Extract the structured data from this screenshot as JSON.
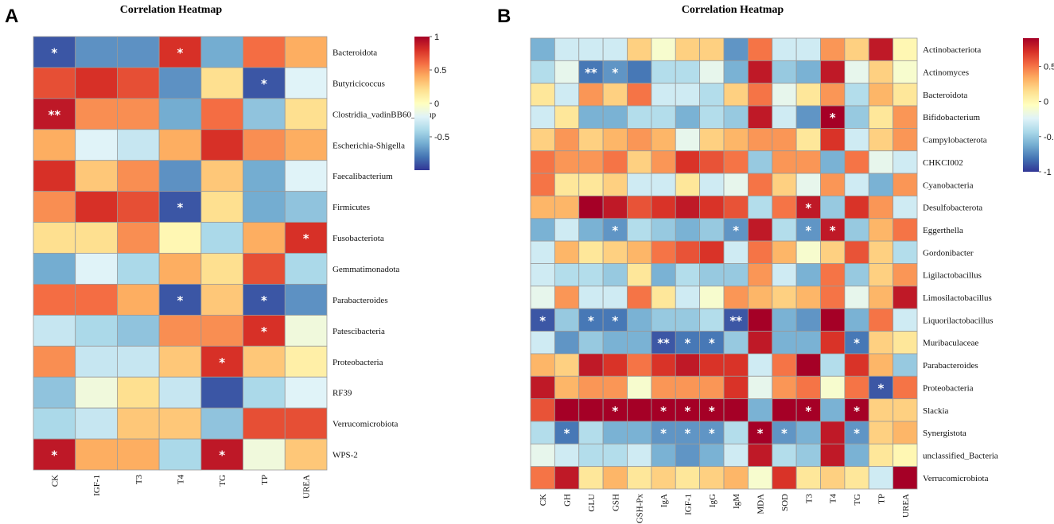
{
  "figure": {
    "panel_a_letter": "A",
    "panel_b_letter": "B"
  },
  "colors": {
    "low": "#313695",
    "mid": "#ffffbf",
    "high": "#a50026",
    "grid": "#9a9a9a"
  },
  "chart_data": [
    {
      "type": "heatmap",
      "panel": "A",
      "title": "Correlation Heatmap",
      "xlabel": "",
      "ylabel": "",
      "columns": [
        "CK",
        "IGF-1",
        "T3",
        "T4",
        "TG",
        "TP",
        "UREA"
      ],
      "rows": [
        "Bacteroidota",
        "Butyricicoccus",
        "Clostridia_vadinBB60_group",
        "Escherichia-Shigella",
        "Faecalibacterium",
        "Firmicutes",
        "Fusobacteriota",
        "Gemmatimonadota",
        "Parabacteroides",
        "Patescibacteria",
        "Proteobacteria",
        "RF39",
        "Verrucomicrobiota",
        "WPS-2"
      ],
      "values": [
        [
          -0.9,
          -0.7,
          -0.7,
          0.8,
          -0.6,
          0.6,
          0.4
        ],
        [
          0.7,
          0.8,
          0.7,
          -0.7,
          0.2,
          -0.9,
          -0.2
        ],
        [
          0.9,
          0.5,
          0.5,
          -0.6,
          0.6,
          -0.5,
          0.2
        ],
        [
          0.4,
          -0.2,
          -0.3,
          0.4,
          0.8,
          0.5,
          0.4
        ],
        [
          0.8,
          0.3,
          0.5,
          -0.7,
          0.3,
          -0.6,
          -0.2
        ],
        [
          0.5,
          0.8,
          0.7,
          -0.9,
          0.2,
          -0.6,
          -0.5
        ],
        [
          0.2,
          0.2,
          0.5,
          0.05,
          -0.4,
          0.4,
          0.8
        ],
        [
          -0.6,
          -0.2,
          -0.4,
          0.4,
          0.2,
          0.7,
          -0.4
        ],
        [
          0.6,
          0.6,
          0.4,
          -0.9,
          0.3,
          -0.9,
          -0.7
        ],
        [
          -0.3,
          -0.4,
          -0.5,
          0.5,
          0.5,
          0.8,
          -0.1
        ],
        [
          0.5,
          -0.3,
          -0.3,
          0.3,
          0.8,
          0.3,
          0.1
        ],
        [
          -0.5,
          -0.1,
          0.2,
          -0.3,
          -0.9,
          -0.4,
          -0.2
        ],
        [
          -0.4,
          -0.3,
          0.3,
          0.3,
          -0.5,
          0.7,
          0.7
        ],
        [
          0.9,
          0.4,
          0.4,
          -0.4,
          0.9,
          -0.1,
          0.3
        ]
      ],
      "significance": [
        [
          "*",
          "",
          "",
          "*",
          "",
          "",
          ""
        ],
        [
          "",
          "",
          "",
          "",
          "",
          "*",
          ""
        ],
        [
          "**",
          "",
          "",
          "",
          "",
          "",
          ""
        ],
        [
          "",
          "",
          "",
          "",
          "",
          "",
          ""
        ],
        [
          "",
          "",
          "",
          "",
          "",
          "",
          ""
        ],
        [
          "",
          "",
          "",
          "*",
          "",
          "",
          ""
        ],
        [
          "",
          "",
          "",
          "",
          "",
          "",
          "*"
        ],
        [
          "",
          "",
          "",
          "",
          "",
          "",
          ""
        ],
        [
          "",
          "",
          "",
          "*",
          "",
          "*",
          ""
        ],
        [
          "",
          "",
          "",
          "",
          "",
          "*",
          ""
        ],
        [
          "",
          "",
          "",
          "",
          "*",
          "",
          ""
        ],
        [
          "",
          "",
          "",
          "",
          "",
          "",
          ""
        ],
        [
          "",
          "",
          "",
          "",
          "",
          "",
          ""
        ],
        [
          "*",
          "",
          "",
          "",
          "*",
          "",
          ""
        ]
      ],
      "colorbar": {
        "min": -1,
        "max": 1,
        "ticks": [
          1,
          0.5,
          0,
          -0.5
        ],
        "tick_labels": [
          "1",
          "0.5",
          "0",
          "-0.5"
        ]
      }
    },
    {
      "type": "heatmap",
      "panel": "B",
      "title": "Correlation Heatmap",
      "xlabel": "",
      "ylabel": "",
      "columns": [
        "CK",
        "GH",
        "GLU",
        "GSH",
        "GSH-Px",
        "IgA",
        "IGF-1",
        "IgG",
        "IgM",
        "MDA",
        "SOD",
        "T3",
        "T4",
        "TG",
        "TP",
        "UREA"
      ],
      "rows": [
        "Actinobacteriota",
        "Actinomyces",
        "Bacteroidota",
        "Bifidobacterium",
        "Campylobacterota",
        "CHKCI002",
        "Cyanobacteria",
        "Desulfobacterota",
        "Eggerthella",
        "Gordonibacter",
        "Ligilactobacillus",
        "Limosilactobacillus",
        "Liquorilactobacillus",
        "Muribaculaceae",
        "Parabacteroides",
        "Proteobacteria",
        "Slackia",
        "Synergistota",
        "unclassified_Bacteria",
        "Verrucomicrobiota"
      ],
      "values": [
        [
          -0.6,
          -0.3,
          -0.3,
          -0.3,
          0.2,
          -0.1,
          0.2,
          0.2,
          -0.7,
          0.5,
          -0.3,
          -0.3,
          0.4,
          0.2,
          0.8,
          0.0
        ],
        [
          -0.4,
          -0.2,
          -0.8,
          -0.7,
          -0.8,
          -0.4,
          -0.4,
          -0.2,
          -0.6,
          0.8,
          -0.5,
          -0.6,
          0.8,
          -0.2,
          0.2,
          -0.1
        ],
        [
          0.1,
          -0.3,
          0.4,
          0.2,
          0.5,
          -0.3,
          -0.3,
          -0.4,
          0.2,
          0.5,
          -0.2,
          0.1,
          0.4,
          -0.4,
          0.3,
          0.1
        ],
        [
          -0.3,
          0.1,
          -0.6,
          -0.6,
          -0.4,
          -0.4,
          -0.6,
          -0.4,
          -0.5,
          0.8,
          -0.3,
          -0.7,
          0.9,
          -0.5,
          0.1,
          0.4
        ],
        [
          0.2,
          0.4,
          0.2,
          0.3,
          0.4,
          0.3,
          -0.2,
          0.2,
          0.3,
          0.4,
          0.4,
          0.1,
          0.7,
          -0.3,
          0.2,
          0.4
        ],
        [
          0.5,
          0.4,
          0.4,
          0.5,
          0.2,
          0.4,
          0.7,
          0.6,
          0.5,
          -0.5,
          0.4,
          0.4,
          -0.6,
          0.5,
          -0.2,
          -0.3
        ],
        [
          0.5,
          0.1,
          0.1,
          0.2,
          -0.3,
          -0.3,
          0.1,
          -0.3,
          -0.2,
          0.5,
          0.2,
          -0.2,
          0.4,
          -0.3,
          -0.6,
          0.4
        ],
        [
          0.3,
          0.3,
          0.9,
          0.8,
          0.6,
          0.7,
          0.8,
          0.7,
          0.6,
          -0.4,
          0.5,
          0.8,
          -0.5,
          0.7,
          0.4,
          -0.3
        ],
        [
          -0.6,
          -0.3,
          -0.6,
          -0.7,
          -0.4,
          -0.5,
          -0.6,
          -0.5,
          -0.7,
          0.8,
          -0.4,
          -0.7,
          0.8,
          -0.5,
          0.3,
          0.5
        ],
        [
          -0.3,
          0.3,
          0.1,
          0.2,
          0.3,
          0.5,
          0.6,
          0.7,
          -0.3,
          0.5,
          0.3,
          -0.1,
          0.2,
          0.6,
          0.2,
          -0.4
        ],
        [
          -0.3,
          -0.4,
          -0.4,
          -0.5,
          0.1,
          -0.6,
          -0.4,
          -0.5,
          -0.5,
          0.4,
          -0.3,
          -0.6,
          0.5,
          -0.5,
          0.2,
          0.4
        ],
        [
          -0.2,
          0.4,
          -0.3,
          -0.3,
          0.5,
          0.1,
          -0.3,
          -0.1,
          0.4,
          0.3,
          0.2,
          0.3,
          0.5,
          -0.2,
          0.3,
          0.8
        ],
        [
          -0.9,
          -0.5,
          -0.8,
          -0.8,
          -0.6,
          -0.5,
          -0.5,
          -0.4,
          -0.9,
          0.9,
          -0.6,
          -0.7,
          0.9,
          -0.6,
          0.5,
          -0.3
        ],
        [
          -0.3,
          -0.7,
          -0.5,
          -0.6,
          -0.6,
          -0.9,
          -0.8,
          -0.8,
          -0.5,
          0.8,
          -0.6,
          -0.6,
          0.7,
          -0.8,
          0.2,
          0.1
        ],
        [
          0.3,
          0.2,
          0.8,
          0.7,
          0.5,
          0.7,
          0.8,
          0.7,
          0.7,
          -0.3,
          0.5,
          0.9,
          -0.4,
          0.7,
          0.3,
          -0.5
        ],
        [
          0.8,
          0.3,
          0.4,
          0.4,
          -0.1,
          0.4,
          0.4,
          0.4,
          0.7,
          -0.2,
          0.4,
          0.5,
          -0.1,
          0.5,
          -0.9,
          0.5
        ],
        [
          0.6,
          0.9,
          0.9,
          0.9,
          0.95,
          0.9,
          0.9,
          0.9,
          0.9,
          -0.6,
          0.9,
          0.9,
          -0.6,
          0.9,
          0.2,
          0.2
        ],
        [
          -0.4,
          -0.8,
          -0.4,
          -0.6,
          -0.6,
          -0.7,
          -0.7,
          -0.7,
          -0.4,
          0.9,
          -0.7,
          -0.6,
          0.8,
          -0.7,
          0.2,
          0.3
        ],
        [
          -0.2,
          -0.3,
          -0.4,
          -0.4,
          -0.3,
          -0.6,
          -0.7,
          -0.6,
          -0.3,
          0.8,
          -0.4,
          -0.5,
          0.8,
          -0.6,
          0.1,
          0.0
        ],
        [
          0.5,
          0.8,
          0.1,
          0.3,
          0.1,
          0.2,
          0.1,
          0.2,
          0.3,
          -0.1,
          0.7,
          0.1,
          0.2,
          0.1,
          -0.3,
          0.9
        ]
      ],
      "significance": [
        [
          "",
          "",
          "",
          "",
          "",
          "",
          "",
          "",
          "",
          "",
          "",
          "",
          "",
          "",
          "",
          ""
        ],
        [
          "",
          "",
          "**",
          "*",
          "",
          "",
          "",
          "",
          "",
          "",
          "",
          "",
          "",
          "",
          "",
          ""
        ],
        [
          "",
          "",
          "",
          "",
          "",
          "",
          "",
          "",
          "",
          "",
          "",
          "",
          "",
          "",
          "",
          ""
        ],
        [
          "",
          "",
          "",
          "",
          "",
          "",
          "",
          "",
          "",
          "",
          "",
          "",
          "*",
          "",
          "",
          ""
        ],
        [
          "",
          "",
          "",
          "",
          "",
          "",
          "",
          "",
          "",
          "",
          "",
          "",
          "",
          "",
          "",
          ""
        ],
        [
          "",
          "",
          "",
          "",
          "",
          "",
          "",
          "",
          "",
          "",
          "",
          "",
          "",
          "",
          "",
          ""
        ],
        [
          "",
          "",
          "",
          "",
          "",
          "",
          "",
          "",
          "",
          "",
          "",
          "",
          "",
          "",
          "",
          ""
        ],
        [
          "",
          "",
          "",
          "",
          "",
          "",
          "",
          "",
          "",
          "",
          "",
          "*",
          "",
          "",
          "",
          ""
        ],
        [
          "",
          "",
          "",
          "*",
          "",
          "",
          "",
          "",
          "*",
          "",
          "",
          "*",
          "*",
          "",
          "",
          ""
        ],
        [
          "",
          "",
          "",
          "",
          "",
          "",
          "",
          "",
          "",
          "",
          "",
          "",
          "",
          "",
          "",
          ""
        ],
        [
          "",
          "",
          "",
          "",
          "",
          "",
          "",
          "",
          "",
          "",
          "",
          "",
          "",
          "",
          "",
          ""
        ],
        [
          "",
          "",
          "",
          "",
          "",
          "",
          "",
          "",
          "",
          "",
          "",
          "",
          "",
          "",
          "",
          ""
        ],
        [
          "*",
          "",
          "*",
          "*",
          "",
          "",
          "",
          "",
          "**",
          "",
          "",
          "",
          "",
          "",
          "",
          ""
        ],
        [
          "",
          "",
          "",
          "",
          "",
          "**",
          "*",
          "*",
          "",
          "",
          "",
          "",
          "",
          "*",
          "",
          ""
        ],
        [
          "",
          "",
          "",
          "",
          "",
          "",
          "",
          "",
          "",
          "",
          "",
          "",
          "",
          "",
          "",
          ""
        ],
        [
          "",
          "",
          "",
          "",
          "",
          "",
          "",
          "",
          "",
          "",
          "",
          "",
          "",
          "",
          "*",
          ""
        ],
        [
          "",
          "",
          "",
          "*",
          "",
          "*",
          "*",
          "*",
          "",
          "",
          "",
          "*",
          "",
          "*",
          "",
          ""
        ],
        [
          "",
          "*",
          "",
          "",
          "",
          "*",
          "*",
          "*",
          "",
          "*",
          "*",
          "",
          "",
          "*",
          "",
          ""
        ],
        [
          "",
          "",
          "",
          "",
          "",
          "",
          "",
          "",
          "",
          "",
          "",
          "",
          "",
          "",
          "",
          ""
        ],
        [
          "",
          "",
          "",
          "",
          "",
          "",
          "",
          "",
          "",
          "",
          "",
          "",
          "",
          "",
          "",
          ""
        ]
      ],
      "colorbar": {
        "min": -1,
        "max": 0.9,
        "ticks": [
          0.5,
          0,
          -0.5,
          -1
        ],
        "tick_labels": [
          "0.5",
          "0",
          "-0.5",
          "-1"
        ]
      }
    }
  ]
}
